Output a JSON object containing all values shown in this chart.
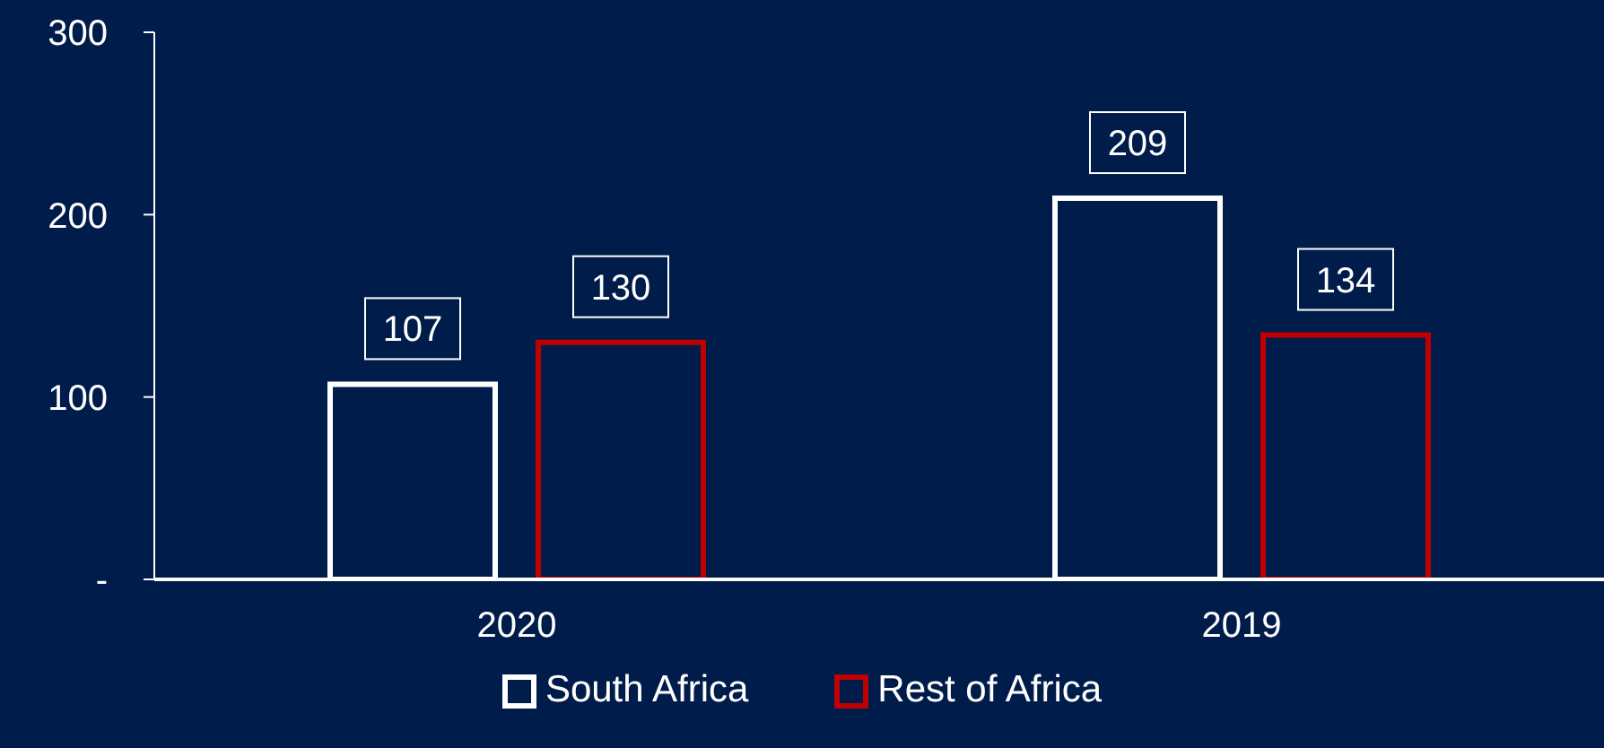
{
  "chart_data": {
    "type": "bar",
    "categories": [
      "2020",
      "2019"
    ],
    "series": [
      {
        "name": "South Africa",
        "color": "#ffffff",
        "values": [
          107,
          209
        ]
      },
      {
        "name": "Rest of Africa",
        "color": "#c00000",
        "values": [
          130,
          134
        ]
      }
    ],
    "ylim": [
      0,
      300
    ],
    "yticks": [
      {
        "value": 0,
        "label": "-"
      },
      100,
      200,
      300
    ],
    "grid": false,
    "legend": "bottom",
    "data_labels": true
  }
}
